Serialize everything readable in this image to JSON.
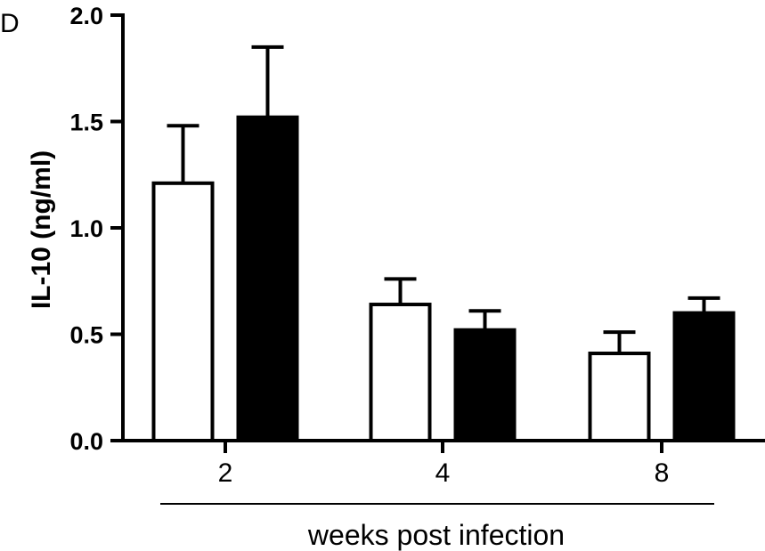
{
  "panel_label": "D",
  "chart_data": {
    "type": "bar",
    "categories": [
      "2",
      "4",
      "8"
    ],
    "series": [
      {
        "color": "#ffffff",
        "values": [
          1.21,
          0.64,
          0.41
        ],
        "errors": [
          0.27,
          0.12,
          0.1
        ]
      },
      {
        "color": "#000000",
        "values": [
          1.52,
          0.52,
          0.6
        ],
        "errors": [
          0.33,
          0.09,
          0.07
        ]
      }
    ],
    "ylim": [
      0,
      2.0
    ],
    "yticks": [
      "0.0",
      "0.5",
      "1.0",
      "1.5",
      "2.0"
    ],
    "ylabel": "IL-10 (ng/ml)",
    "xlabel": "weeks post infection",
    "grid": false
  }
}
